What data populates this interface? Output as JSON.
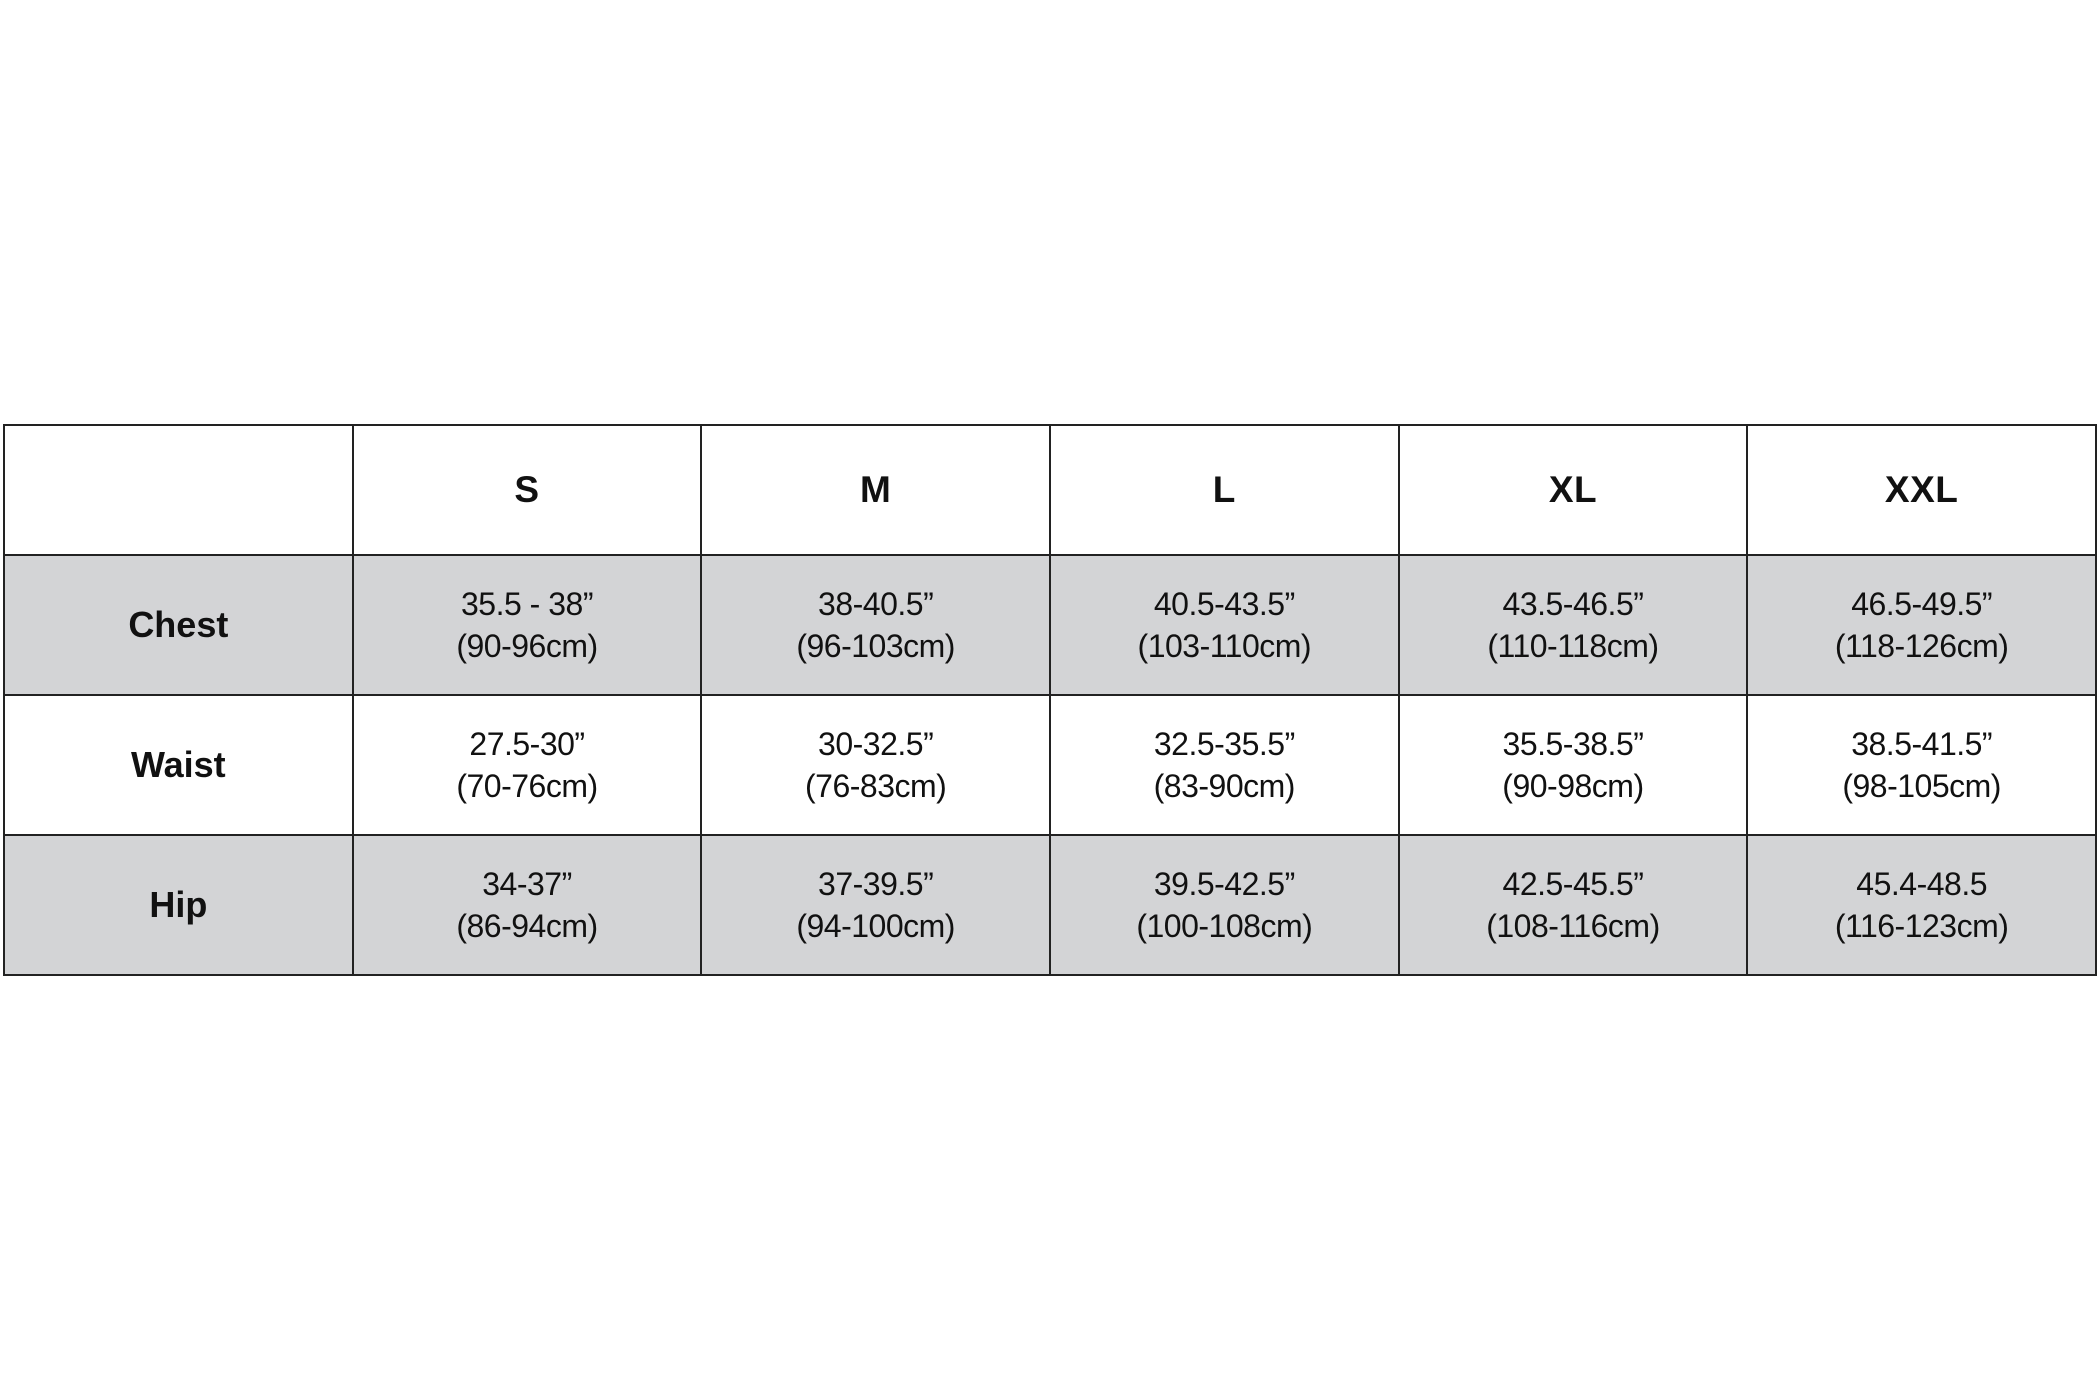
{
  "table": {
    "corner": "",
    "sizes": [
      "S",
      "M",
      "L",
      "XL",
      "XXL"
    ],
    "rows": [
      {
        "label": "Chest",
        "shaded": true,
        "cells": [
          {
            "in": "35.5 - 38”",
            "cm": "(90-96cm)"
          },
          {
            "in": "38-40.5”",
            "cm": "(96-103cm)"
          },
          {
            "in": "40.5-43.5”",
            "cm": "(103-110cm)"
          },
          {
            "in": "43.5-46.5”",
            "cm": "(110-118cm)"
          },
          {
            "in": "46.5-49.5”",
            "cm": "(118-126cm)"
          }
        ]
      },
      {
        "label": "Waist",
        "shaded": false,
        "cells": [
          {
            "in": "27.5-30”",
            "cm": "(70-76cm)"
          },
          {
            "in": "30-32.5”",
            "cm": "(76-83cm)"
          },
          {
            "in": "32.5-35.5”",
            "cm": "(83-90cm)"
          },
          {
            "in": "35.5-38.5”",
            "cm": "(90-98cm)"
          },
          {
            "in": "38.5-41.5”",
            "cm": "(98-105cm)"
          }
        ]
      },
      {
        "label": "Hip",
        "shaded": true,
        "cells": [
          {
            "in": "34-37”",
            "cm": "(86-94cm)"
          },
          {
            "in": "37-39.5”",
            "cm": "(94-100cm)"
          },
          {
            "in": "39.5-42.5”",
            "cm": "(100-108cm)"
          },
          {
            "in": "42.5-45.5”",
            "cm": "(108-116cm)"
          },
          {
            "in": "45.4-48.5",
            "cm": "(116-123cm)"
          }
        ]
      }
    ],
    "colors": {
      "shaded_row": "#d3d4d6",
      "border": "#222222"
    }
  }
}
